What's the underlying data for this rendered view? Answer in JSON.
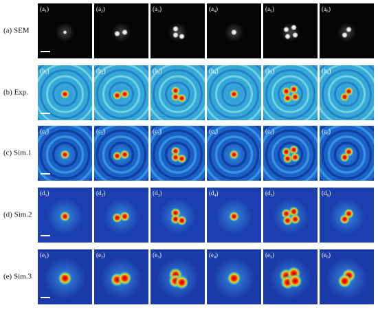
{
  "rows": [
    {
      "label": "(a) SEM",
      "panels": [
        {
          "main": "(a",
          "sub": "1",
          "close": ")"
        },
        {
          "main": "(a",
          "sub": "2",
          "close": ")"
        },
        {
          "main": "(a",
          "sub": "3",
          "close": ")"
        },
        {
          "main": "(a",
          "sub": "4",
          "close": ")"
        },
        {
          "main": "(a",
          "sub": "5",
          "close": ")"
        },
        {
          "main": "(a",
          "sub": "6",
          "close": ")"
        }
      ]
    },
    {
      "label": "(b) Exp.",
      "panels": [
        {
          "main": "(b",
          "sub": "1",
          "close": ")"
        },
        {
          "main": "(b",
          "sub": "2",
          "close": ")"
        },
        {
          "main": "(b",
          "sub": "3",
          "close": ")"
        },
        {
          "main": "(b",
          "sub": "4",
          "close": ")"
        },
        {
          "main": "(b",
          "sub": "5",
          "close": ")"
        },
        {
          "main": "(b",
          "sub": "6",
          "close": ")"
        }
      ]
    },
    {
      "label": "(c) Sim.1",
      "panels": [
        {
          "main": "(c",
          "sub": "1",
          "close": ")"
        },
        {
          "main": "(c",
          "sub": "2",
          "close": ")"
        },
        {
          "main": "(c",
          "sub": "3",
          "close": ")"
        },
        {
          "main": "(c",
          "sub": "4",
          "close": ")"
        },
        {
          "main": "(c",
          "sub": "5",
          "close": ")"
        },
        {
          "main": "(c",
          "sub": "6",
          "close": ")"
        }
      ]
    },
    {
      "label": "(d) Sim.2",
      "panels": [
        {
          "main": "(d",
          "sub": "1",
          "close": ")"
        },
        {
          "main": "(d",
          "sub": "2",
          "close": ")"
        },
        {
          "main": "(d",
          "sub": "3",
          "close": ")"
        },
        {
          "main": "(d",
          "sub": "4",
          "close": ")"
        },
        {
          "main": "(d",
          "sub": "5",
          "close": ")"
        },
        {
          "main": "(d",
          "sub": "6",
          "close": ")"
        }
      ]
    },
    {
      "label": "(e) Sim.3",
      "panels": [
        {
          "main": "(e",
          "sub": "1",
          "close": ")"
        },
        {
          "main": "(e",
          "sub": "2",
          "close": ")"
        },
        {
          "main": "(e",
          "sub": "3",
          "close": ")"
        },
        {
          "main": "(e",
          "sub": "4",
          "close": ")"
        },
        {
          "main": "(e",
          "sub": "5",
          "close": ")"
        },
        {
          "main": "(e",
          "sub": "6",
          "close": ")"
        }
      ]
    }
  ]
}
